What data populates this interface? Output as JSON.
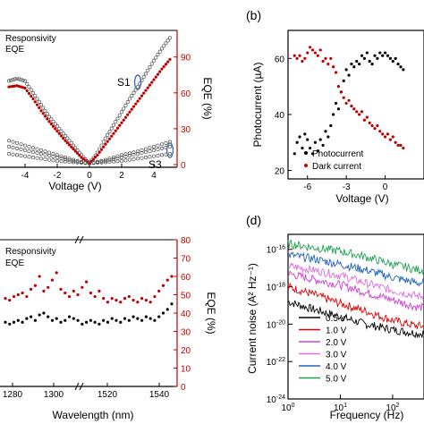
{
  "colors": {
    "black": "#000000",
    "red": "#c00000",
    "blue": "#4a6fa5",
    "hollow": "#555555"
  },
  "chart_data": [
    {
      "panel": "a",
      "type": "scatter",
      "xlabel": "Voltage (V)",
      "y2label": "EQE (%)",
      "xlim": [
        -5,
        5
      ],
      "y2lim": [
        0,
        110
      ],
      "xticks": [
        "-4",
        "-2",
        "0",
        "2",
        "4"
      ],
      "y2ticks": [
        "0",
        "30",
        "60",
        "90"
      ],
      "legend": [
        "Responsivity",
        "EQE"
      ],
      "annotations": [
        "S1",
        "S3"
      ],
      "series": [
        {
          "name": "Responsivity",
          "x": [
            -5,
            -4.5,
            -4,
            -3.5,
            -3,
            -2.5,
            -2,
            -1.5,
            -1,
            -0.5,
            0,
            0.5,
            1,
            1.5,
            2,
            2.5,
            3,
            3.5,
            4,
            4.5,
            5
          ],
          "y": [
            70,
            72,
            70,
            60,
            50,
            40,
            32,
            24,
            16,
            8,
            1,
            10,
            22,
            33,
            44,
            55,
            65,
            76,
            87,
            97,
            106
          ]
        },
        {
          "name": "EQE",
          "x": [
            -5,
            -4.5,
            -4,
            -3.5,
            -3,
            -2.5,
            -2,
            -1.5,
            -1,
            -0.5,
            0,
            0.5,
            1,
            1.5,
            2,
            2.5,
            3,
            3.5,
            4,
            4.5,
            5
          ],
          "y": [
            65,
            66,
            64,
            55,
            45,
            36,
            28,
            20,
            13,
            6,
            1,
            8,
            17,
            26,
            35,
            44,
            53,
            62,
            71,
            80,
            88
          ]
        },
        {
          "name": "",
          "x": [
            -5,
            -4,
            -3,
            -2,
            -1,
            0,
            1,
            2,
            3,
            4,
            5
          ],
          "y": [
            20,
            16,
            12,
            8,
            4,
            1,
            4,
            8,
            11,
            15,
            19
          ]
        },
        {
          "name": "",
          "x": [
            -5,
            -4,
            -3,
            -2,
            -1,
            0,
            1,
            2,
            3,
            4,
            5
          ],
          "y": [
            15,
            12,
            9,
            6,
            3,
            1,
            3,
            6,
            9,
            12,
            15
          ]
        },
        {
          "name": "",
          "x": [
            -5,
            -4,
            -3,
            -2,
            -1,
            0,
            1,
            2,
            3,
            4,
            5
          ],
          "y": [
            9,
            7,
            5,
            3,
            2,
            1,
            2,
            3,
            5,
            7,
            9
          ]
        }
      ]
    },
    {
      "panel": "b",
      "type": "scatter",
      "label": "(b)",
      "xlabel": "Voltage (V)",
      "ylabel": "Photocurrent (µA)",
      "xlim": [
        -7.5,
        3
      ],
      "ylim": [
        17,
        70
      ],
      "xticks": [
        "-6",
        "-3",
        "0"
      ],
      "yticks": [
        "20",
        "40",
        "60"
      ],
      "legend": [
        "Photocurrent",
        "Dark current"
      ],
      "series": [
        {
          "name": "Photocurrent",
          "x": [
            -7,
            -6.8,
            -6.6,
            -6.4,
            -6.2,
            -6,
            -5.8,
            -5.6,
            -5.4,
            -5.2,
            -5,
            -4.8,
            -4.6,
            -4.4,
            -4.2,
            -4,
            -3.8,
            -3.6,
            -3.4,
            -3.2,
            -3,
            -2.8,
            -2.6,
            -2.4,
            -2.2,
            -2,
            -1.8,
            -1.6,
            -1.4,
            -1.2,
            -1,
            -0.8,
            -0.6,
            -0.4,
            -0.2,
            0,
            0.2,
            0.4,
            0.6,
            0.8,
            1,
            1.2,
            1.4
          ],
          "y": [
            26,
            30,
            32,
            28,
            33,
            31,
            28,
            26,
            30,
            27,
            31,
            29,
            34,
            32,
            36,
            40,
            44,
            42,
            48,
            52,
            56,
            54,
            58,
            57,
            59,
            58,
            61,
            60,
            62,
            59,
            58,
            61,
            60,
            62,
            61,
            62,
            61,
            60,
            59,
            60,
            58,
            57,
            56
          ]
        },
        {
          "name": "Dark current",
          "x": [
            -7,
            -6.8,
            -6.6,
            -6.4,
            -6.2,
            -6,
            -5.8,
            -5.6,
            -5.4,
            -5.2,
            -5,
            -4.8,
            -4.6,
            -4.4,
            -4.2,
            -4,
            -3.8,
            -3.6,
            -3.4,
            -3.2,
            -3,
            -2.8,
            -2.6,
            -2.4,
            -2.2,
            -2,
            -1.8,
            -1.6,
            -1.4,
            -1.2,
            -1,
            -0.8,
            -0.6,
            -0.4,
            -0.2,
            0,
            0.2,
            0.4,
            0.6,
            0.8,
            1,
            1.2,
            1.4
          ],
          "y": [
            61,
            60,
            61,
            59,
            60,
            62,
            64,
            63,
            62,
            61,
            63,
            59,
            60,
            58,
            60,
            57,
            55,
            50,
            48,
            46,
            44,
            45,
            43,
            42,
            41,
            40,
            41,
            38,
            39,
            37,
            36,
            35,
            36,
            34,
            33,
            32,
            33,
            31,
            32,
            30,
            29,
            29,
            28
          ]
        }
      ]
    },
    {
      "panel": "c",
      "type": "scatter",
      "xlabel": "Wavelength (nm)",
      "y2label": "EQE (%)",
      "y2lim": [
        0,
        80
      ],
      "xticks": [
        "1280",
        "1300",
        "1520",
        "1540"
      ],
      "y2ticks": [
        "0",
        "10",
        "20",
        "30",
        "40",
        "50",
        "60",
        "70",
        "80"
      ],
      "legend": [
        "Responsivity",
        "EQE"
      ],
      "series": [
        {
          "name": "Responsivity",
          "x": [
            0,
            1,
            2,
            3,
            4,
            5,
            6,
            7,
            8,
            9,
            10,
            11,
            12,
            13,
            14,
            15,
            16,
            17,
            18,
            19,
            20,
            21,
            22,
            23,
            24,
            25,
            26,
            27,
            28,
            29,
            30,
            31,
            32,
            33,
            34,
            35,
            36,
            37,
            38,
            39
          ],
          "y": [
            35,
            34,
            35,
            36,
            35,
            37,
            38,
            36,
            39,
            40,
            38,
            36,
            37,
            35,
            36,
            38,
            37,
            36,
            34,
            35,
            36,
            35,
            34,
            36,
            35,
            37,
            36,
            35,
            37,
            36,
            38,
            37,
            36,
            38,
            37,
            36,
            38,
            40,
            42,
            45
          ]
        },
        {
          "name": "EQE",
          "x": [
            0,
            1,
            2,
            3,
            4,
            5,
            6,
            7,
            8,
            9,
            10,
            11,
            12,
            13,
            14,
            15,
            16,
            17,
            18,
            19,
            20,
            21,
            22,
            23,
            24,
            25,
            26,
            27,
            28,
            29,
            30,
            31,
            32,
            33,
            34,
            35,
            36,
            37,
            38,
            39
          ],
          "y": [
            48,
            47,
            49,
            50,
            51,
            49,
            53,
            55,
            60,
            52,
            54,
            58,
            62,
            53,
            51,
            49,
            52,
            50,
            54,
            57,
            51,
            49,
            52,
            48,
            46,
            48,
            47,
            46,
            48,
            49,
            47,
            46,
            48,
            47,
            46,
            49,
            52,
            55,
            58,
            60
          ]
        }
      ]
    },
    {
      "panel": "d",
      "type": "line",
      "label": "(d)",
      "xlabel": "Frequency (Hz)",
      "ylabel": "Current noise (A² Hz⁻¹)",
      "x_scale": "log",
      "y_scale": "log",
      "xticks": [
        "10^0",
        "10^1",
        "10^2"
      ],
      "yticks": [
        "10^-24",
        "10^-22",
        "10^-20",
        "10^-18",
        "10^-16"
      ],
      "legend": [
        "0.5 V",
        "1.0 V",
        "2.0 V",
        "3.0 V",
        "4.0 V",
        "5.0 V"
      ],
      "series": [
        {
          "name": "0.5 V",
          "color": "#000000",
          "x": [
            1,
            3,
            10,
            30,
            100,
            300
          ],
          "y": [
            -18.8,
            -19.2,
            -19.6,
            -20.0,
            -20.3,
            -20.5
          ]
        },
        {
          "name": "1.0 V",
          "color": "#e00000",
          "x": [
            1,
            3,
            10,
            30,
            100,
            300
          ],
          "y": [
            -18.0,
            -18.4,
            -18.9,
            -19.3,
            -19.8,
            -20.1
          ]
        },
        {
          "name": "2.0 V",
          "color": "#d040d0",
          "x": [
            1,
            3,
            10,
            30,
            100,
            300
          ],
          "y": [
            -17.3,
            -17.6,
            -17.9,
            -18.3,
            -18.7,
            -19.1
          ]
        },
        {
          "name": "3.0 V",
          "color": "#e070e0",
          "x": [
            1,
            3,
            10,
            30,
            100,
            300
          ],
          "y": [
            -16.9,
            -17.1,
            -17.4,
            -17.8,
            -18.2,
            -18.5
          ]
        },
        {
          "name": "4.0 V",
          "color": "#2060c0",
          "x": [
            1,
            3,
            10,
            30,
            100,
            300
          ],
          "y": [
            -16.3,
            -16.5,
            -16.8,
            -17.1,
            -17.5,
            -17.8
          ]
        },
        {
          "name": "5.0 V",
          "color": "#20a050",
          "x": [
            1,
            3,
            10,
            30,
            100,
            300
          ],
          "y": [
            -15.7,
            -15.9,
            -16.1,
            -16.4,
            -16.8,
            -17.1
          ]
        }
      ]
    }
  ]
}
